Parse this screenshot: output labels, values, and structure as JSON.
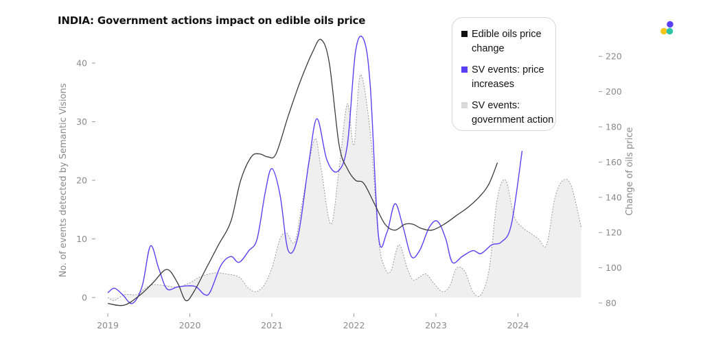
{
  "chart_data": {
    "type": "line",
    "title": "INDIA: Government actions impact on edible oils price",
    "ylabel": "No. of events detected by Semantic Visions",
    "y2label": "Change of oils price",
    "ylim": [
      -3.5,
      44
    ],
    "y2lim": [
      80,
      225
    ],
    "xlim": [
      2019,
      2024.77
    ],
    "x_ticks": [
      "2019",
      "2020",
      "2021",
      "2022",
      "2023",
      "2024"
    ],
    "y_ticks": [
      "0",
      "10",
      "20",
      "30",
      "40"
    ],
    "y2_ticks": [
      "80",
      "100",
      "120",
      "140",
      "160",
      "180",
      "200",
      "220"
    ],
    "legend_position": "top-right",
    "grid": false,
    "series": [
      {
        "name": "SV events: government action",
        "axis": "left",
        "style": "area",
        "color": "#d9d9d9",
        "points": [
          [
            2019.0,
            0
          ],
          [
            2019.08,
            -0.5
          ],
          [
            2019.2,
            0.5
          ],
          [
            2019.35,
            0.5
          ],
          [
            2019.45,
            1.5
          ],
          [
            2019.55,
            2.2
          ],
          [
            2019.7,
            2
          ],
          [
            2019.85,
            1.8
          ],
          [
            2020.0,
            2.5
          ],
          [
            2020.12,
            3.5
          ],
          [
            2020.3,
            4.2
          ],
          [
            2020.45,
            4
          ],
          [
            2020.6,
            3.5
          ],
          [
            2020.7,
            1.8
          ],
          [
            2020.8,
            1
          ],
          [
            2020.9,
            2
          ],
          [
            2021.0,
            5
          ],
          [
            2021.1,
            10
          ],
          [
            2021.18,
            11
          ],
          [
            2021.28,
            9.5
          ],
          [
            2021.38,
            17
          ],
          [
            2021.52,
            27
          ],
          [
            2021.6,
            22
          ],
          [
            2021.72,
            12.5
          ],
          [
            2021.82,
            22
          ],
          [
            2021.92,
            33
          ],
          [
            2022.0,
            26
          ],
          [
            2022.08,
            38
          ],
          [
            2022.2,
            28
          ],
          [
            2022.3,
            10
          ],
          [
            2022.38,
            5
          ],
          [
            2022.45,
            4.5
          ],
          [
            2022.55,
            9
          ],
          [
            2022.65,
            5
          ],
          [
            2022.72,
            3
          ],
          [
            2022.8,
            3.5
          ],
          [
            2022.88,
            4
          ],
          [
            2022.97,
            2.5
          ],
          [
            2023.08,
            1
          ],
          [
            2023.17,
            2
          ],
          [
            2023.25,
            5
          ],
          [
            2023.35,
            4.5
          ],
          [
            2023.45,
            1
          ],
          [
            2023.55,
            0.5
          ],
          [
            2023.65,
            5
          ],
          [
            2023.75,
            17
          ],
          [
            2023.85,
            20
          ],
          [
            2023.95,
            14
          ],
          [
            2024.05,
            12
          ],
          [
            2024.15,
            11
          ],
          [
            2024.25,
            10
          ],
          [
            2024.35,
            9
          ],
          [
            2024.45,
            17
          ],
          [
            2024.55,
            20
          ],
          [
            2024.65,
            19
          ],
          [
            2024.77,
            12
          ]
        ]
      },
      {
        "name": "SV events: price increases",
        "axis": "left",
        "style": "line",
        "color": "#5b3ff5",
        "points": [
          [
            2019.0,
            0.8
          ],
          [
            2019.08,
            1.6
          ],
          [
            2019.18,
            0.5
          ],
          [
            2019.3,
            -1
          ],
          [
            2019.42,
            2
          ],
          [
            2019.52,
            8.8
          ],
          [
            2019.62,
            5
          ],
          [
            2019.72,
            1.5
          ],
          [
            2019.85,
            1.8
          ],
          [
            2019.98,
            2
          ],
          [
            2020.08,
            1.8
          ],
          [
            2020.18,
            0.5
          ],
          [
            2020.25,
            1
          ],
          [
            2020.38,
            5.5
          ],
          [
            2020.5,
            7
          ],
          [
            2020.6,
            6
          ],
          [
            2020.72,
            8
          ],
          [
            2020.82,
            10
          ],
          [
            2020.92,
            18
          ],
          [
            2021.0,
            22
          ],
          [
            2021.1,
            17.5
          ],
          [
            2021.2,
            8
          ],
          [
            2021.32,
            10.5
          ],
          [
            2021.45,
            23
          ],
          [
            2021.55,
            30.5
          ],
          [
            2021.67,
            23.5
          ],
          [
            2021.8,
            21.5
          ],
          [
            2021.92,
            26
          ],
          [
            2022.02,
            42
          ],
          [
            2022.12,
            44
          ],
          [
            2022.2,
            36
          ],
          [
            2022.3,
            10.5
          ],
          [
            2022.4,
            11
          ],
          [
            2022.5,
            16
          ],
          [
            2022.6,
            12
          ],
          [
            2022.7,
            7
          ],
          [
            2022.8,
            8
          ],
          [
            2022.92,
            12
          ],
          [
            2023.02,
            13
          ],
          [
            2023.12,
            10
          ],
          [
            2023.2,
            6
          ],
          [
            2023.32,
            7
          ],
          [
            2023.45,
            8
          ],
          [
            2023.55,
            7.5
          ],
          [
            2023.68,
            9
          ],
          [
            2023.8,
            9.5
          ],
          [
            2023.92,
            12.5
          ],
          [
            2024.05,
            25
          ]
        ]
      },
      {
        "name": "Edible oils price change",
        "axis": "right",
        "style": "line",
        "color": "#3a3a3a",
        "points": [
          [
            2019.0,
            -1
          ],
          [
            2019.2,
            -1.3
          ],
          [
            2019.4,
            0.5
          ],
          [
            2019.55,
            2.5
          ],
          [
            2019.72,
            4.8
          ],
          [
            2019.85,
            2.5
          ],
          [
            2019.95,
            -0.5
          ],
          [
            2020.05,
            1
          ],
          [
            2020.2,
            5
          ],
          [
            2020.35,
            9
          ],
          [
            2020.5,
            13
          ],
          [
            2020.62,
            20
          ],
          [
            2020.75,
            24
          ],
          [
            2020.85,
            24.5
          ],
          [
            2020.95,
            24
          ],
          [
            2021.05,
            24.5
          ],
          [
            2021.2,
            31
          ],
          [
            2021.35,
            37
          ],
          [
            2021.5,
            42
          ],
          [
            2021.6,
            44
          ],
          [
            2021.7,
            40
          ],
          [
            2021.82,
            26
          ],
          [
            2021.92,
            22
          ],
          [
            2022.02,
            20
          ],
          [
            2022.12,
            19.5
          ],
          [
            2022.25,
            16
          ],
          [
            2022.38,
            12.5
          ],
          [
            2022.5,
            11.5
          ],
          [
            2022.62,
            12.5
          ],
          [
            2022.72,
            12.5
          ],
          [
            2022.82,
            11.8
          ],
          [
            2022.95,
            11.5
          ],
          [
            2023.1,
            12.5
          ],
          [
            2023.25,
            14
          ],
          [
            2023.4,
            15.5
          ],
          [
            2023.55,
            17.5
          ],
          [
            2023.65,
            19.5
          ],
          [
            2023.75,
            23
          ]
        ]
      }
    ]
  },
  "legend": [
    {
      "label": "Edible oils price change",
      "color": "#111111"
    },
    {
      "label": "SV events: price increases",
      "color": "#5b3ff5"
    },
    {
      "label": "SV events: government action",
      "color": "#d9d9d9"
    }
  ],
  "logo": {
    "colors": [
      "#5b3ff5",
      "#f5c518",
      "#2ec4a6"
    ]
  }
}
